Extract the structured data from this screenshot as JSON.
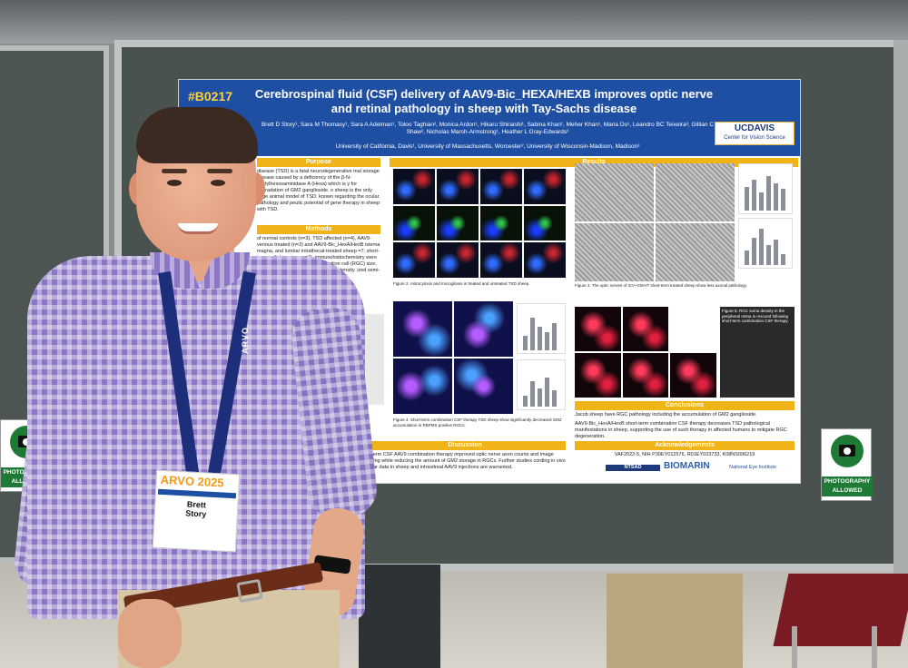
{
  "poster": {
    "code": "#B0217",
    "title": "Cerebrospinal fluid (CSF) delivery of AAV9-Bic_HEXA/HEXB improves optic nerve and retinal pathology in sheep with Tay-Sachs disease",
    "authors": "Brett D Story¹, Sara M Thomasy¹, Sara A Adelman¹, Toloo Taghian², Monica Ardon¹, Hikaru Shiraishi¹, Sabina Khan¹, Meher Khan¹, Maria Do¹, Leandro BC Teixeira³, Gillian C Shaw², Nicholas Marsh-Armstrong¹, Heather L Gray-Edwards²",
    "affiliations": "University of California, Davis¹, University of Massachusetts, Worcester², University of Wisconsin-Madison, Madison³",
    "logo_main": "UCDAVIS",
    "logo_sub": "Center for Vision Science",
    "sections": {
      "purpose": "Purpose",
      "methods": "Methods",
      "results": "Results",
      "discussion": "Discussion",
      "conclusions": "Conclusions",
      "acknowledgements": "Acknowledgements"
    },
    "purpose_text": "disease (TSD) is a fatal neurodegenerative mal storage disease caused by a deficiency of the β-N-acetylhexosaminidase A (Hexa) which is y for degradation of GM2 ganglioside. o sheep is the only large animal model of TSD. known regarding the ocular pathology and peutic potential of gene therapy in sheep with TSD.",
    "methods_text": "of normal controls (n=3), TSD affected (n=4), AAV9-venous treated (n=3) and AAV9-Bic_HexA/HexB isterna magna, and lumbar intrathecal-treated sheep =7; short-term n=4, long-term n=3). immunohistochemistry were performed. Retinal ne retinal ganglion cell (RGC) size, density oside (GM2) volume, signal intensity. ized semi-thin sections",
    "fig2_caption": "Figure 2. Astrocytosis and microgliosis in treated and untreated TSD sheep.",
    "fig3_caption": "Figure 3. The optic nerves of ICV+CM+IT short-term treated sheep show less axonal pathology.",
    "fig4_caption": "Figure 4. Short-term combination CSF therapy TSD sheep show significantly decreased GM2 accumulation in RBPMS positive RGCs.",
    "fig5_caption": "Figure 5: RGC soma density in the peripheral retina is rescued following short-term combination CSF therapy.",
    "discussion_text": "ort-term CSF AAV9 combination therapy improved optic nerve axon counts and image scoring while reducing the amount of GM2 storage in RGCs. Further studies cording in vivo ocular data in sheep and intravitreal AAV9 injections are warranted.",
    "conclusions_text_1": "Jacob sheep have RGC pathology including the accumulation of GM2 ganglioside.",
    "conclusions_text_2": "AAV9-Bic_HexA/HexB short-term combination CSF therapy decreases TSD pathological manifestations in sheep, supporting the use of such therapy in affected humans to mitigate RGC degeneration.",
    "grants": "VAF2022-5, NIH P30EY012576, R01EY033733, K08NS096219",
    "sponsor_1": "NTSAD",
    "sponsor_2": "BIOMARIN",
    "sponsor_3": "National Eye Institute"
  },
  "badge": {
    "event": "ARVO 2025",
    "name_first": "Brett",
    "name_last": "Story"
  },
  "lanyard_text": "ARVO",
  "sign_left": {
    "label": "PHOTOGRAPHY ALLOWED"
  },
  "sign_right": {
    "label": "PHOTOGRAPHY ALLOWED"
  },
  "colors": {
    "poster_header": "#1f4fa3",
    "section_bar": "#f0b418",
    "shirt": "#8c77c7",
    "sign_green": "#1e7a35"
  }
}
